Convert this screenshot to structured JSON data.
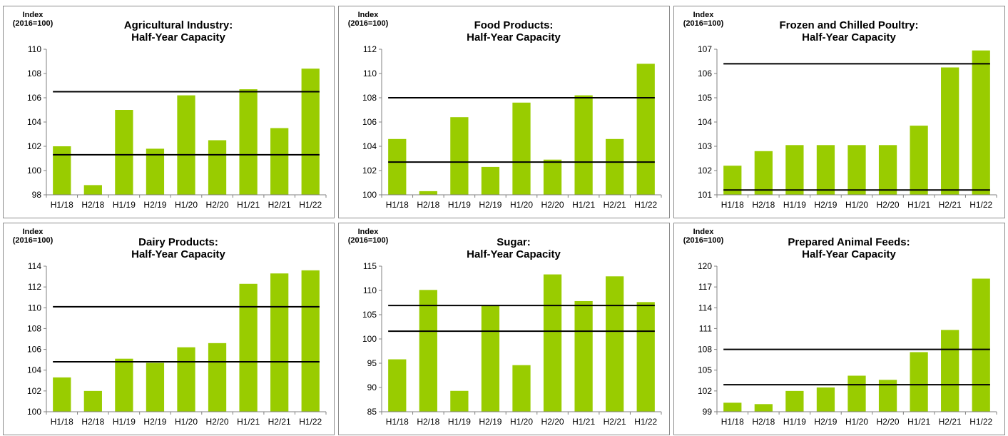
{
  "colors": {
    "bar": "#99cc00",
    "reference_line": "#000000",
    "axis": "#808080"
  },
  "chart_data": [
    {
      "type": "bar",
      "title": "Agricultural Industry:",
      "subtitle": "Half-Year Capacity",
      "ylabel": "Index (2016=100)",
      "ylabel_lines": [
        "Index",
        "(2016=100)"
      ],
      "categories": [
        "H1/18",
        "H2/18",
        "H1/19",
        "H2/19",
        "H1/20",
        "H2/20",
        "H1/21",
        "H2/21",
        "H1/22"
      ],
      "values": [
        102.0,
        98.8,
        105.0,
        101.8,
        106.2,
        102.5,
        106.7,
        103.5,
        108.4
      ],
      "ylim": [
        98,
        110
      ],
      "yticks": [
        98,
        100,
        102,
        104,
        106,
        108,
        110
      ],
      "reference_lines": [
        106.5,
        101.3
      ],
      "grid": false,
      "legend": "none"
    },
    {
      "type": "bar",
      "title": "Food Products:",
      "subtitle": "Half-Year Capacity",
      "ylabel": "Index (2016=100)",
      "ylabel_lines": [
        "Index",
        "(2016=100)"
      ],
      "categories": [
        "H1/18",
        "H2/18",
        "H1/19",
        "H2/19",
        "H1/20",
        "H2/20",
        "H1/21",
        "H2/21",
        "H1/22"
      ],
      "values": [
        104.6,
        100.3,
        106.4,
        102.3,
        107.6,
        102.9,
        108.2,
        104.6,
        110.8
      ],
      "ylim": [
        100,
        112
      ],
      "yticks": [
        100,
        102,
        104,
        106,
        108,
        110,
        112
      ],
      "reference_lines": [
        108.0,
        102.7
      ],
      "grid": false,
      "legend": "none"
    },
    {
      "type": "bar",
      "title": "Frozen and Chilled Poultry:",
      "subtitle": "Half-Year Capacity",
      "ylabel": "Index (2016=100)",
      "ylabel_lines": [
        "Index",
        "(2016=100)"
      ],
      "categories": [
        "H1/18",
        "H2/18",
        "H1/19",
        "H2/19",
        "H1/20",
        "H2/20",
        "H1/21",
        "H2/21",
        "H1/22"
      ],
      "values": [
        102.2,
        102.8,
        103.05,
        103.05,
        103.05,
        103.05,
        103.85,
        106.25,
        106.95
      ],
      "ylim": [
        101,
        107
      ],
      "yticks": [
        101,
        102,
        103,
        104,
        105,
        106,
        107
      ],
      "reference_lines": [
        106.4,
        101.2
      ],
      "grid": false,
      "legend": "none"
    },
    {
      "type": "bar",
      "title": "Dairy Products:",
      "subtitle": "Half-Year Capacity",
      "ylabel": "Index (2016=100)",
      "ylabel_lines": [
        "Index",
        "(2016=100)"
      ],
      "categories": [
        "H1/18",
        "H2/18",
        "H1/19",
        "H2/19",
        "H1/20",
        "H2/20",
        "H1/21",
        "H2/21",
        "H1/22"
      ],
      "values": [
        103.3,
        102.0,
        105.1,
        104.7,
        106.2,
        106.6,
        112.3,
        113.3,
        113.6
      ],
      "ylim": [
        100,
        114
      ],
      "yticks": [
        100,
        102,
        104,
        106,
        108,
        110,
        112,
        114
      ],
      "reference_lines": [
        110.1,
        104.8
      ],
      "grid": false,
      "legend": "none"
    },
    {
      "type": "bar",
      "title": "Sugar:",
      "subtitle": "Half-Year Capacity",
      "ylabel": "Index (2016=100)",
      "ylabel_lines": [
        "Index",
        "(2016=100)"
      ],
      "categories": [
        "H1/18",
        "H2/18",
        "H1/19",
        "H2/19",
        "H1/20",
        "H2/20",
        "H1/21",
        "H2/21",
        "H1/22"
      ],
      "values": [
        95.8,
        110.1,
        89.3,
        106.8,
        94.6,
        113.3,
        107.8,
        112.9,
        107.6
      ],
      "ylim": [
        85,
        115
      ],
      "yticks": [
        85,
        90,
        95,
        100,
        105,
        110,
        115
      ],
      "reference_lines": [
        106.9,
        101.6
      ],
      "grid": false,
      "legend": "none"
    },
    {
      "type": "bar",
      "title": "Prepared Animal Feeds:",
      "subtitle": "Half-Year Capacity",
      "ylabel": "Index (2016=100)",
      "ylabel_lines": [
        "Index",
        "(2016=100)"
      ],
      "categories": [
        "H1/18",
        "H2/18",
        "H1/19",
        "H2/19",
        "H1/20",
        "H2/20",
        "H1/21",
        "H2/21",
        "H1/22"
      ],
      "values": [
        100.3,
        100.1,
        102.0,
        102.5,
        104.2,
        103.6,
        107.6,
        110.8,
        118.2
      ],
      "ylim": [
        99,
        120
      ],
      "yticks": [
        99,
        102,
        105,
        108,
        111,
        114,
        117,
        120
      ],
      "reference_lines": [
        108.0,
        102.9
      ],
      "grid": false,
      "legend": "none"
    }
  ]
}
